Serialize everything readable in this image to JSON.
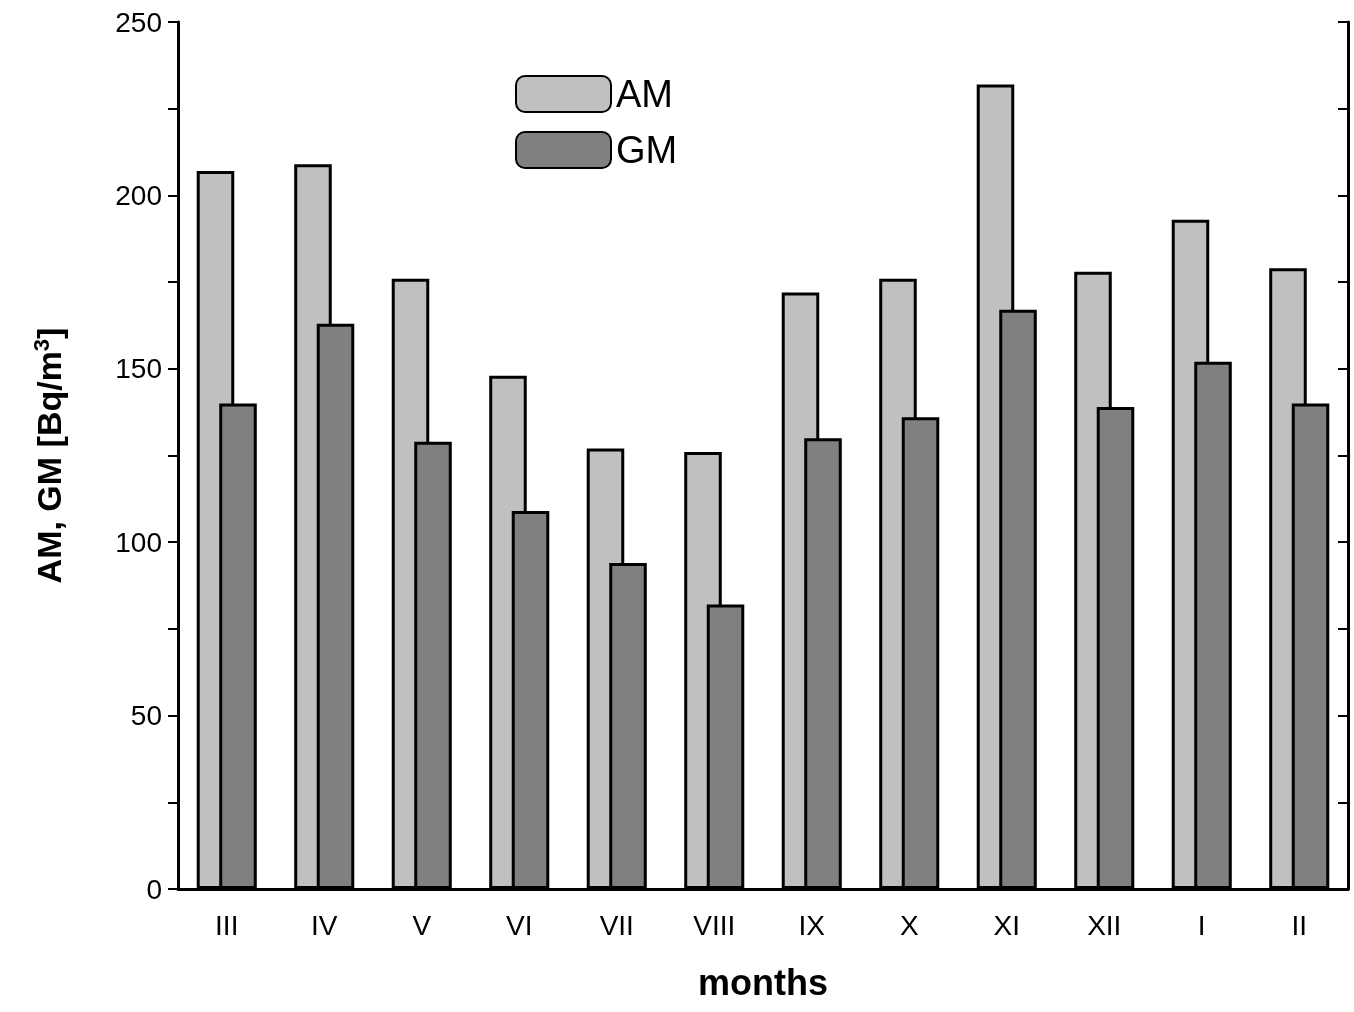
{
  "chart_data": {
    "type": "bar",
    "xlabel": "months",
    "ylabel": "AM, GM [Bq/m$^{3}$]",
    "categories": [
      "III",
      "IV",
      "V",
      "VI",
      "VII",
      "VIII",
      "IX",
      "X",
      "XI",
      "XII",
      "I",
      "II"
    ],
    "series": [
      {
        "name": "AM",
        "color": "#c0c0c0",
        "values": [
          207,
          209,
          176,
          148,
          127,
          126,
          172,
          176,
          232,
          178,
          193,
          179
        ]
      },
      {
        "name": "GM",
        "color": "#808080",
        "values": [
          140,
          163,
          129,
          109,
          94,
          82,
          130,
          136,
          167,
          139,
          152,
          140
        ]
      }
    ],
    "ylim": [
      0,
      250
    ],
    "yticks": [
      0,
      {
        "value": 25,
        "label": null
      },
      50,
      {
        "value": 75,
        "label": null
      },
      100,
      {
        "value": 125,
        "label": null
      },
      150,
      {
        "value": 175,
        "label": null
      },
      200,
      {
        "value": 225,
        "label": null
      },
      250
    ],
    "legend": "top",
    "grid": false
  }
}
